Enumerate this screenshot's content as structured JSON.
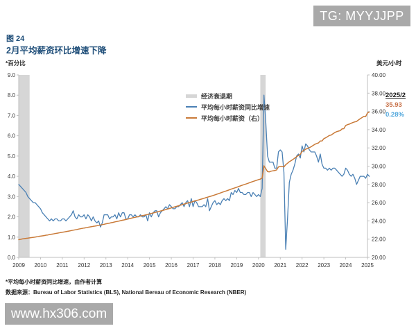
{
  "badge": {
    "text": "TG: MYYJJPP"
  },
  "figure": {
    "label": "图 24",
    "title": "2月平均薪资环比增速下降"
  },
  "axes": {
    "left_unit": "*百分比",
    "right_unit": "美元/小时"
  },
  "legend": [
    {
      "label": "经济衰退期",
      "swatch": "band",
      "color": "#d6d6d6"
    },
    {
      "label": "平均每小时薪资同比增速",
      "swatch": "line",
      "color": "#4a80b4"
    },
    {
      "label": "平均每小时薪资（右）",
      "swatch": "line",
      "color": "#c97a38"
    }
  ],
  "annotation": {
    "date": "2025/2",
    "wage": "35.93",
    "growth": "0.28%",
    "wage_color": "#c9734a",
    "growth_color": "#4fa6dc"
  },
  "footnotes": [
    "*平均每小时薪资同比增速，由作者计算",
    "数据来源：Bureau of Labor Statistics (BLS), National Bereau of Economic Research (NBER)"
  ],
  "watermark": {
    "text": "www.hx306.com"
  },
  "chart_data": {
    "type": "line",
    "title": "2月平均薪资环比增速下降",
    "x_start_year": 2009,
    "x_step_months": 1,
    "x_end_label": "2025/2",
    "x_ticks": [
      2009,
      2010,
      2011,
      2012,
      2013,
      2014,
      2015,
      2016,
      2017,
      2018,
      2019,
      2020,
      2021,
      2022,
      2023,
      2024,
      2025
    ],
    "left_axis": {
      "label": "*百分比",
      "range": [
        0,
        9
      ],
      "tick_step": 1,
      "tick_decimals": 1
    },
    "right_axis": {
      "label": "美元/小时",
      "range": [
        20,
        40
      ],
      "tick_step": 2,
      "tick_decimals": 2
    },
    "grid": false,
    "legend_position": "inside-top-center",
    "recessions": [
      [
        2009.0,
        2009.5
      ],
      [
        2020.083,
        2020.33
      ]
    ],
    "colors": {
      "recession": "#d6d6d6",
      "spine": "#bfbfbf",
      "tick_text": "#333333",
      "blue": "#4a80b4",
      "orange": "#c97a38"
    },
    "series": [
      {
        "name": "平均每小时薪资同比增速",
        "axis": "left",
        "color": "#4a80b4",
        "width": 1.3,
        "values": [
          3.6,
          3.5,
          3.4,
          3.3,
          3.2,
          3.0,
          2.9,
          2.8,
          2.7,
          2.7,
          2.6,
          2.5,
          2.4,
          2.2,
          2.1,
          2.0,
          1.9,
          1.8,
          1.9,
          1.8,
          1.9,
          1.9,
          1.8,
          1.8,
          1.9,
          1.9,
          1.8,
          1.9,
          2.0,
          2.1,
          2.3,
          2.0,
          1.9,
          2.1,
          2.0,
          2.0,
          2.1,
          1.9,
          2.1,
          2.0,
          1.8,
          2.0,
          1.8,
          1.7,
          1.8,
          1.5,
          1.7,
          2.1,
          2.1,
          2.1,
          1.9,
          2.0,
          2.0,
          2.1,
          1.9,
          2.2,
          2.0,
          2.2,
          2.2,
          1.9,
          1.9,
          2.1,
          2.1,
          2.0,
          2.1,
          2.0,
          2.0,
          2.1,
          2.0,
          2.0,
          2.1,
          1.8,
          2.2,
          2.0,
          2.2,
          2.3,
          2.3,
          2.0,
          2.2,
          2.3,
          2.4,
          2.5,
          2.4,
          2.6,
          2.5,
          2.4,
          2.4,
          2.5,
          2.5,
          2.6,
          2.7,
          2.5,
          2.7,
          2.8,
          2.5,
          2.9,
          2.5,
          2.8,
          2.7,
          2.5,
          2.5,
          2.5,
          2.6,
          2.5,
          2.9,
          2.3,
          2.5,
          2.7,
          2.8,
          2.6,
          2.7,
          2.6,
          2.8,
          2.9,
          2.8,
          2.9,
          2.8,
          3.2,
          3.1,
          3.3,
          3.2,
          3.4,
          3.2,
          3.2,
          3.1,
          3.1,
          3.2,
          3.2,
          3.0,
          3.2,
          3.1,
          3.0,
          3.1,
          3.0,
          3.4,
          8.0,
          6.7,
          5.0,
          4.7,
          4.7,
          4.7,
          4.4,
          4.4,
          5.2,
          5.3,
          5.2,
          4.2,
          0.4,
          1.9,
          3.7,
          4.1,
          4.3,
          4.6,
          5.0,
          5.1,
          4.9,
          5.5,
          5.2,
          5.6,
          5.5,
          5.3,
          5.2,
          5.2,
          5.2,
          5.0,
          4.7,
          5.1,
          4.6,
          4.4,
          4.4,
          4.3,
          4.4,
          4.3,
          4.4,
          4.4,
          4.3,
          4.2,
          4.1,
          4.0,
          4.1,
          4.4,
          4.3,
          4.1,
          4.0,
          4.1,
          3.9,
          3.6,
          3.8,
          4.0,
          4.0,
          4.0,
          3.9,
          4.1,
          4.0
        ]
      },
      {
        "name": "平均每小时薪资（右）",
        "axis": "right",
        "color": "#c97a38",
        "width": 1.5,
        "values": [
          21.94,
          21.98,
          22.02,
          22.05,
          22.08,
          22.11,
          22.14,
          22.17,
          22.2,
          22.23,
          22.26,
          22.3,
          22.33,
          22.36,
          22.39,
          22.43,
          22.46,
          22.5,
          22.54,
          22.57,
          22.61,
          22.65,
          22.68,
          22.72,
          22.75,
          22.78,
          22.82,
          22.86,
          22.9,
          22.94,
          22.98,
          23.02,
          23.06,
          23.1,
          23.14,
          23.18,
          23.22,
          23.25,
          23.29,
          23.33,
          23.36,
          23.4,
          23.43,
          23.47,
          23.51,
          23.55,
          23.59,
          23.63,
          23.68,
          23.72,
          23.76,
          23.8,
          23.84,
          23.89,
          23.93,
          23.97,
          24.02,
          24.07,
          24.11,
          24.15,
          24.2,
          24.25,
          24.3,
          24.35,
          24.39,
          24.44,
          24.48,
          24.53,
          24.57,
          24.61,
          24.66,
          24.7,
          24.76,
          24.81,
          24.87,
          24.92,
          24.97,
          25.02,
          25.08,
          25.13,
          25.19,
          25.25,
          25.3,
          25.36,
          25.42,
          25.48,
          25.54,
          25.6,
          25.66,
          25.72,
          25.78,
          25.84,
          25.9,
          25.96,
          26.01,
          26.07,
          26.13,
          26.19,
          26.24,
          26.3,
          26.36,
          26.42,
          26.48,
          26.54,
          26.6,
          26.66,
          26.72,
          26.78,
          26.85,
          26.92,
          26.99,
          27.06,
          27.13,
          27.2,
          27.27,
          27.34,
          27.41,
          27.48,
          27.55,
          27.62,
          27.69,
          27.76,
          27.83,
          27.9,
          27.97,
          28.04,
          28.11,
          28.18,
          28.25,
          28.32,
          28.39,
          28.46,
          28.52,
          28.58,
          28.7,
          30.04,
          29.73,
          29.4,
          29.38,
          29.45,
          29.49,
          29.52,
          29.59,
          29.92,
          29.96,
          29.98,
          29.92,
          30.16,
          30.32,
          30.49,
          30.61,
          30.74,
          30.88,
          31.04,
          31.17,
          31.29,
          31.62,
          31.72,
          31.86,
          31.94,
          32.03,
          32.13,
          32.26,
          32.39,
          32.48,
          32.55,
          32.76,
          32.77,
          33.01,
          33.11,
          33.23,
          33.36,
          33.41,
          33.54,
          33.68,
          33.78,
          33.84,
          33.89,
          34.08,
          34.11,
          34.46,
          34.55,
          34.61,
          34.7,
          34.78,
          34.85,
          34.9,
          35.06,
          35.2,
          35.32,
          35.46,
          35.44,
          35.83,
          35.93
        ]
      }
    ]
  }
}
